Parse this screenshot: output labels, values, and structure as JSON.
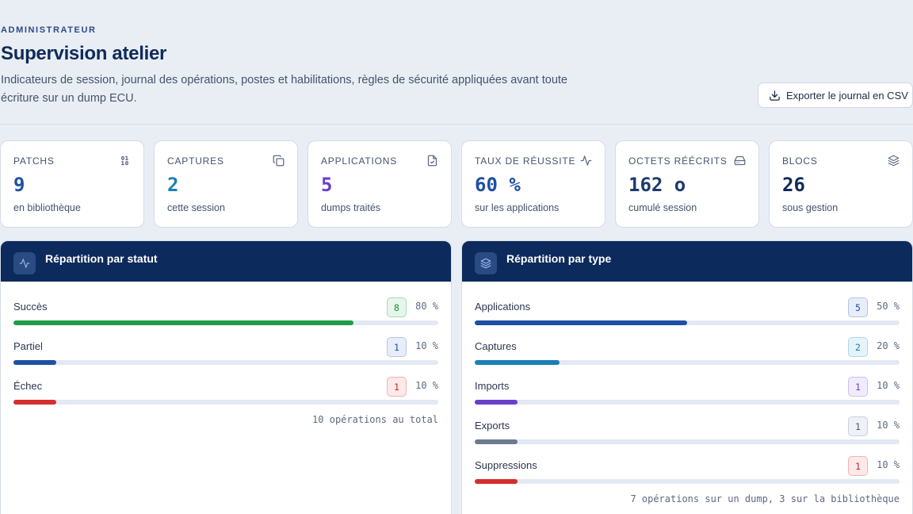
{
  "header": {
    "eyebrow": "ADMINISTRATEUR",
    "title": "Supervision atelier",
    "subtitle": "Indicateurs de session, journal des opérations, postes et habilitations, règles de sécurité appliquées avant toute écriture sur un dump ECU.",
    "export_label": "Exporter le journal en CSV"
  },
  "stats": [
    {
      "label": "PATCHS",
      "value": "9",
      "sub": "en bibliothèque",
      "icon": "binary-icon",
      "color": "#1e4fa3"
    },
    {
      "label": "CAPTURES",
      "value": "2",
      "sub": "cette session",
      "icon": "copy-icon",
      "color": "#1a7fb8"
    },
    {
      "label": "APPLICATIONS",
      "value": "5",
      "sub": "dumps traités",
      "icon": "file-check-icon",
      "color": "#6a3fc9"
    },
    {
      "label": "TAUX DE RÉUSSITE",
      "value": "60 %",
      "sub": "sur les applications",
      "icon": "activity-icon",
      "color": "#1e4fa3"
    },
    {
      "label": "OCTETS RÉÉCRITS",
      "value": "162 o",
      "sub": "cumulé session",
      "icon": "hard-drive-icon",
      "color": "#1e3a6e"
    },
    {
      "label": "BLOCS",
      "value": "26",
      "sub": "sous gestion",
      "icon": "layers-icon",
      "color": "#0f2a5a"
    }
  ],
  "status_panel": {
    "title": "Répartition par statut",
    "icon": "activity-icon",
    "rows": [
      {
        "label": "Succès",
        "count": "8",
        "pct_text": "80 %",
        "pct": 0.8,
        "color": "#1f9d48",
        "badge_bg": "#e6f6ea",
        "badge_border": "#a6dcb4",
        "badge_fg": "#1f8a40"
      },
      {
        "label": "Partiel",
        "count": "1",
        "pct_text": "10 %",
        "pct": 0.1,
        "color": "#1e4fa3",
        "badge_bg": "#e8eef9",
        "badge_border": "#b5c4e2",
        "badge_fg": "#1e4fa3"
      },
      {
        "label": "Échec",
        "count": "1",
        "pct_text": "10 %",
        "pct": 0.1,
        "color": "#d32f2f",
        "badge_bg": "#fde9e9",
        "badge_border": "#f0b2b2",
        "badge_fg": "#c62828"
      }
    ],
    "footnote": "10 opérations au total"
  },
  "type_panel": {
    "title": "Répartition par type",
    "icon": "layers-icon",
    "rows": [
      {
        "label": "Applications",
        "count": "5",
        "pct_text": "50 %",
        "pct": 0.5,
        "color": "#1e4fa3",
        "badge_bg": "#e8eef9",
        "badge_border": "#b5c4e2",
        "badge_fg": "#1e4fa3"
      },
      {
        "label": "Captures",
        "count": "2",
        "pct_text": "20 %",
        "pct": 0.2,
        "color": "#1a7fb8",
        "badge_bg": "#e5f4fa",
        "badge_border": "#a9d6ea",
        "badge_fg": "#1a7fb8"
      },
      {
        "label": "Imports",
        "count": "1",
        "pct_text": "10 %",
        "pct": 0.1,
        "color": "#6a3fc9",
        "badge_bg": "#f1ecfb",
        "badge_border": "#cdbdf0",
        "badge_fg": "#6a3fc9"
      },
      {
        "label": "Exports",
        "count": "1",
        "pct_text": "10 %",
        "pct": 0.1,
        "color": "#6b7a90",
        "badge_bg": "#eef1f6",
        "badge_border": "#c9d1dd",
        "badge_fg": "#4a5870"
      },
      {
        "label": "Suppressions",
        "count": "1",
        "pct_text": "10 %",
        "pct": 0.1,
        "color": "#d32f2f",
        "badge_bg": "#fde9e9",
        "badge_border": "#f0b2b2",
        "badge_fg": "#c62828"
      }
    ],
    "footnote": "7 opérations sur un dump, 3 sur la bibliothèque"
  }
}
